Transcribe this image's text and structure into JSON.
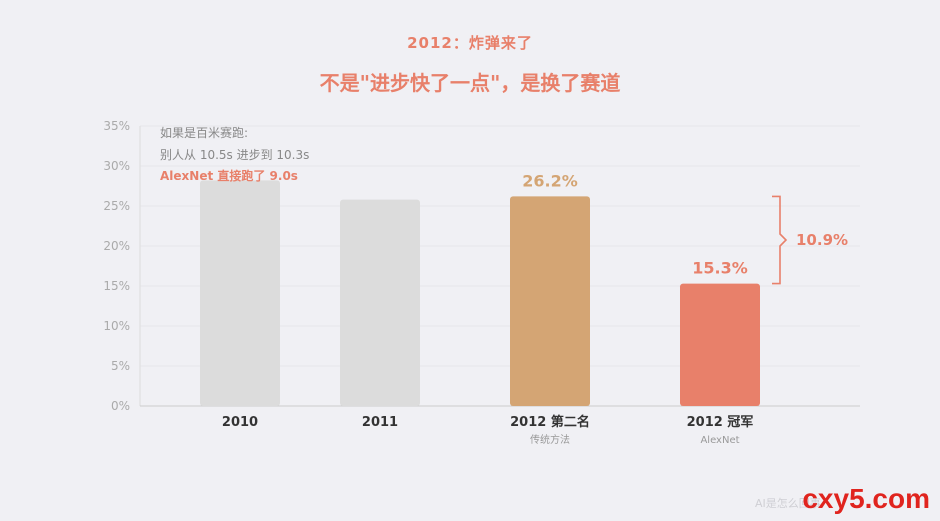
{
  "header": {
    "kicker": "2012：炸弹来了",
    "headline": "不是\"进步快了一点\"，是换了赛道"
  },
  "annotation": {
    "line1": "如果是百米赛跑:",
    "line2": "别人从 10.5s 进步到 10.3s",
    "line3": "AlexNet 直接跑了 9.0s"
  },
  "chart_data": {
    "type": "bar",
    "categories": [
      "2010",
      "2011",
      "2012 第二名",
      "2012 冠军"
    ],
    "sublabels": [
      "",
      "",
      "传统方法",
      "AlexNet"
    ],
    "values": [
      28.2,
      25.8,
      26.2,
      15.3
    ],
    "data_labels": [
      "",
      "",
      "26.2%",
      "15.3%"
    ],
    "bar_colors": [
      "#dcdcdc",
      "#dcdcdc",
      "#d4a574",
      "#e8806a"
    ],
    "label_colors": [
      "",
      "",
      "#d4a574",
      "#e8806a"
    ],
    "ylim": [
      0,
      35
    ],
    "yticks": [
      "0%",
      "5%",
      "10%",
      "15%",
      "20%",
      "25%",
      "30%",
      "35%"
    ],
    "bracket_label": "10.9%",
    "bracket_color": "#e8806a",
    "title": "",
    "xlabel": "",
    "ylabel": ""
  },
  "footer": {
    "watermark_sub": "AI是怎么回事",
    "watermark": "cxy5.com"
  }
}
